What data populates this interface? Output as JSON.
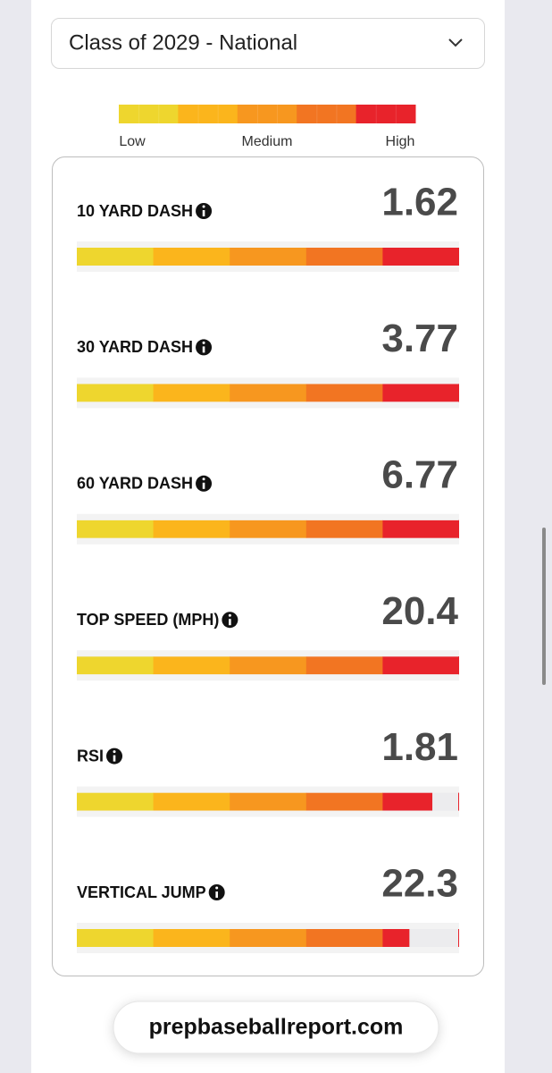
{
  "dropdown": {
    "label": "Class of 2029 - National"
  },
  "legend": {
    "labels": [
      "Low",
      "Medium",
      "High"
    ],
    "colors": [
      "#eed62e",
      "#fbb51c",
      "#f7971f",
      "#f27522",
      "#e8232b"
    ]
  },
  "metrics": [
    {
      "name": "10 YARD DASH",
      "value": 1.62,
      "level": 100
    },
    {
      "name": "30 YARD DASH",
      "value": 3.77,
      "level": 100
    },
    {
      "name": "60 YARD DASH",
      "value": 6.77,
      "level": 100
    },
    {
      "name": "TOP SPEED (MPH)",
      "value": 20.4,
      "level": 100
    },
    {
      "name": "RSI",
      "value": 1.81,
      "level": 93
    },
    {
      "name": "VERTICAL JUMP",
      "value": 22.3,
      "level": 87
    }
  ],
  "footer": {
    "text": "prepbaseballreport.com"
  }
}
